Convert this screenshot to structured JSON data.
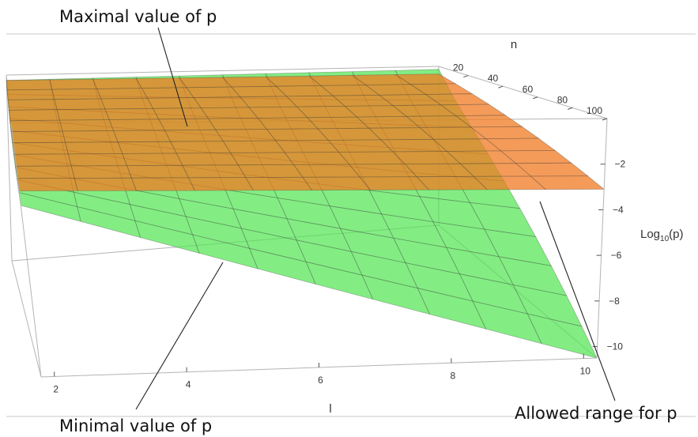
{
  "chart_data": {
    "type": "surface3d",
    "axes": {
      "x": {
        "label": "l",
        "ticks": [
          2,
          4,
          6,
          8,
          10
        ],
        "range": [
          1.8,
          10.2
        ]
      },
      "y": {
        "label": "n",
        "ticks": [
          20,
          40,
          60,
          80,
          100
        ],
        "range": [
          3,
          100
        ]
      },
      "z": {
        "label_main": "Log",
        "label_sub": "10",
        "label_tail": "(p)",
        "ticks": [
          -2,
          -4,
          -6,
          -8,
          -10
        ],
        "range": [
          0,
          -10.5
        ]
      }
    },
    "surfaces": [
      {
        "id": "maximal",
        "color": "#f07a22",
        "opacity": 0.75,
        "z_at_corners": {
          "l_min_n_min": -0.3,
          "l_max_n_min": -0.5,
          "l_min_n_max": -2.8,
          "l_max_n_max": -3.1
        }
      },
      {
        "id": "minimal",
        "color": "#4ee64e",
        "opacity": 0.7,
        "z_at_corners": {
          "l_min_n_min": -0.3,
          "l_max_n_min": -0.2,
          "l_min_n_max": -3.4,
          "l_max_n_max": -10.5
        }
      }
    ],
    "annotations": [
      {
        "id": "maximal",
        "text": "Maximal value of p"
      },
      {
        "id": "minimal",
        "text": "Minimal value of p"
      },
      {
        "id": "allowed",
        "text": "Allowed range for p"
      }
    ],
    "grid": true
  }
}
